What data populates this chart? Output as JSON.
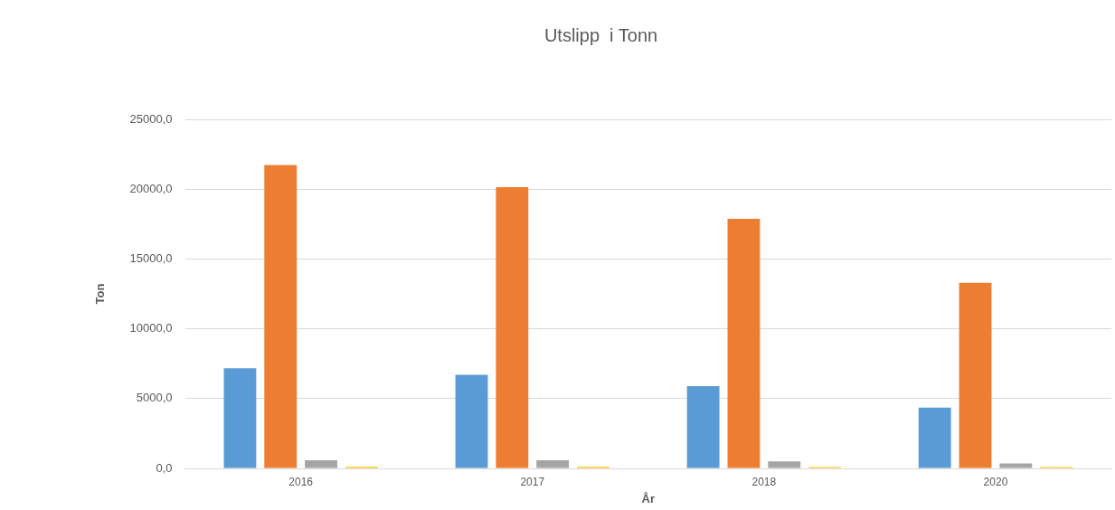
{
  "chart_data": {
    "type": "bar",
    "title": "Utslipp  i Tonn",
    "xlabel": "År",
    "ylabel": "Ton",
    "categories": [
      "2016",
      "2017",
      "2018",
      "2020"
    ],
    "series": [
      {
        "color": "#5b9bd5",
        "values": [
          7180,
          6700,
          5900,
          4360
        ]
      },
      {
        "color": "#ed7d31",
        "values": [
          21730,
          20150,
          17880,
          13290
        ]
      },
      {
        "color": "#a5a5a5",
        "values": [
          590,
          590,
          500,
          350
        ]
      },
      {
        "color": "#ffc000",
        "values": [
          110,
          110,
          100,
          100
        ]
      }
    ],
    "ylim": [
      0,
      25000
    ],
    "yticks": [
      {
        "value": 0,
        "label": "0,0"
      },
      {
        "value": 5000,
        "label": "5000,0"
      },
      {
        "value": 10000,
        "label": "10000,0"
      },
      {
        "value": 15000,
        "label": "15000,0"
      },
      {
        "value": 20000,
        "label": "20000,0"
      },
      {
        "value": 25000,
        "label": "25000,0"
      }
    ],
    "grid": "y",
    "legend": false
  }
}
